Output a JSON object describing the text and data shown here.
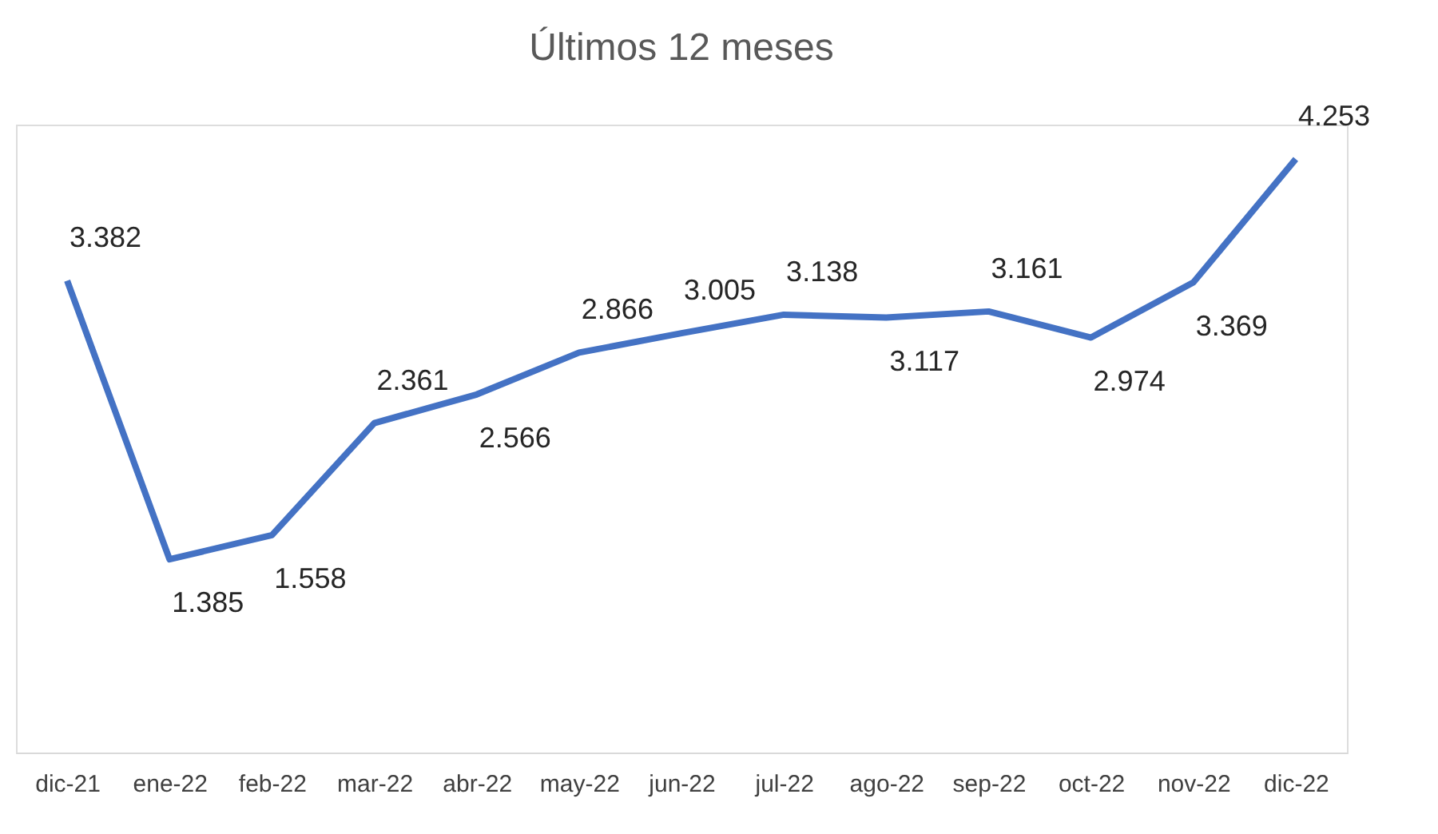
{
  "chart_data": {
    "type": "line",
    "title": "Últimos 12 meses",
    "categories": [
      "dic-21",
      "ene-22",
      "feb-22",
      "mar-22",
      "abr-22",
      "may-22",
      "jun-22",
      "jul-22",
      "ago-22",
      "sep-22",
      "oct-22",
      "nov-22",
      "dic-22"
    ],
    "series": [
      {
        "color": "#4472c4",
        "values": [
          3382,
          1385,
          1558,
          2361,
          2566,
          2866,
          3005,
          3138,
          3117,
          3161,
          2974,
          3369,
          4253
        ],
        "value_labels": [
          "3.382",
          "1.385",
          "1.558",
          "2.361",
          "2.566",
          "2.866",
          "3.005",
          "3.138",
          "3.117",
          "3.161",
          "2.974",
          "3.369",
          "4.253"
        ]
      }
    ],
    "ylim": [
      0,
      4500
    ],
    "marker": "none",
    "line_style": "solid"
  }
}
